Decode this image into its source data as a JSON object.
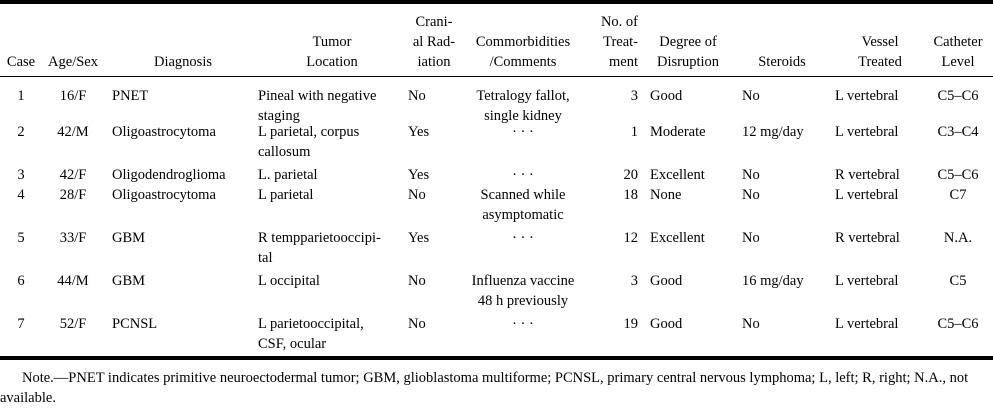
{
  "headers": [
    [
      "Case"
    ],
    [
      "Age/Sex"
    ],
    [
      "Diagnosis"
    ],
    [
      "Tumor",
      "Location"
    ],
    [
      "Crani-",
      "al Rad-",
      "iation"
    ],
    [
      "Commorbidities",
      "/Comments"
    ],
    [
      "No. of",
      "Treat-",
      "ment"
    ],
    [
      "Degree of",
      "Disruption"
    ],
    [
      "Steroids"
    ],
    [
      "Vessel",
      "Treated"
    ],
    [
      "Catheter",
      "Level"
    ]
  ],
  "rows": [
    {
      "case": "1",
      "age_sex": "16/F",
      "diagnosis": "PNET",
      "location": [
        "Pineal with negative",
        "staging"
      ],
      "radiation": "No",
      "comments": [
        "Tetralogy fallot,",
        "single kidney"
      ],
      "treatments": "3",
      "disruption": "Good",
      "steroids": "No",
      "vessel": "L vertebral",
      "catheter": "C5–C6"
    },
    {
      "case": "2",
      "age_sex": "42/M",
      "diagnosis": "Oligoastrocytoma",
      "location": [
        "L parietal, corpus",
        "callosum"
      ],
      "radiation": "Yes",
      "comments": [
        "· · ·"
      ],
      "treatments": "1",
      "disruption": "Moderate",
      "steroids": "12 mg/day",
      "vessel": "L vertebral",
      "catheter": "C3–C4"
    },
    {
      "case": "3",
      "age_sex": "42/F",
      "diagnosis": "Oligodendroglioma",
      "location": [
        "L. parietal"
      ],
      "radiation": "Yes",
      "comments": [
        "· · ·"
      ],
      "treatments": "20",
      "disruption": "Excellent",
      "steroids": "No",
      "vessel": "R vertebral",
      "catheter": "C5–C6"
    },
    {
      "case": "4",
      "age_sex": "28/F",
      "diagnosis": "Oligoastrocytoma",
      "location": [
        "L parietal"
      ],
      "radiation": "No",
      "comments": [
        "Scanned while",
        "asymptomatic"
      ],
      "treatments": "18",
      "disruption": "None",
      "steroids": "No",
      "vessel": "L vertebral",
      "catheter": "C7"
    },
    {
      "case": "5",
      "age_sex": "33/F",
      "diagnosis": "GBM",
      "location": [
        "R tempparietooccipi-",
        "tal"
      ],
      "radiation": "Yes",
      "comments": [
        "· · ·"
      ],
      "treatments": "12",
      "disruption": "Excellent",
      "steroids": "No",
      "vessel": "R vertebral",
      "catheter": "N.A."
    },
    {
      "case": "6",
      "age_sex": "44/M",
      "diagnosis": "GBM",
      "location": [
        "L occipital"
      ],
      "radiation": "No",
      "comments": [
        "Influenza vaccine",
        "48 h previously"
      ],
      "treatments": "3",
      "disruption": "Good",
      "steroids": "16 mg/day",
      "vessel": "L vertebral",
      "catheter": "C5"
    },
    {
      "case": "7",
      "age_sex": "52/F",
      "diagnosis": "PCNSL",
      "location": [
        "L parietooccipital,",
        "CSF, ocular"
      ],
      "radiation": "No",
      "comments": [
        "· · ·"
      ],
      "treatments": "19",
      "disruption": "Good",
      "steroids": "No",
      "vessel": "L vertebral",
      "catheter": "C5–C6"
    }
  ],
  "note": "Note.—PNET indicates primitive neuroectodermal tumor; GBM, glioblastoma multiforme; PCNSL, primary central nervous lymphoma; L, left; R, right; N.A., not available."
}
